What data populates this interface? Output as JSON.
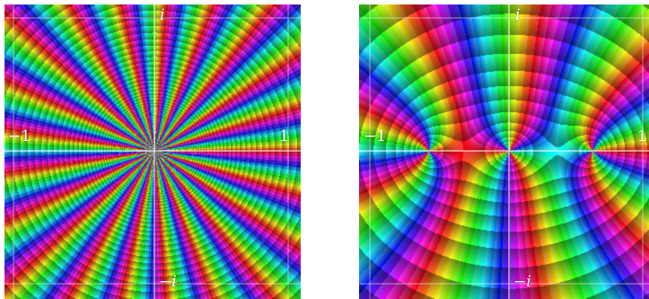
{
  "panels": [
    {
      "id": "left",
      "labels": {
        "top": "i",
        "bottom": "−i",
        "left": "−1",
        "right": "1"
      },
      "zeros": [
        {
          "re": 0,
          "im": 0,
          "order": 21
        }
      ],
      "grid_color": "#ffffff"
    },
    {
      "id": "right",
      "labels": {
        "top": "i",
        "bottom": "−i",
        "left": "−1",
        "right": "1"
      },
      "zeros": [
        {
          "re": -0.6,
          "im": 0,
          "order": 3
        },
        {
          "re": 0.0,
          "im": 0,
          "order": 3
        },
        {
          "re": 0.62,
          "im": 0,
          "order": 3
        }
      ],
      "grid_color": "#ffffff"
    }
  ]
}
